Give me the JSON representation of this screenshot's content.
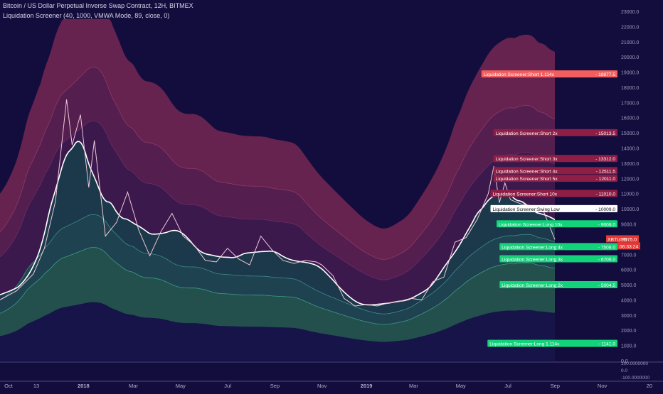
{
  "header": {
    "title": "Bitcoin / US Dollar Perpetual Inverse Swap Contract, 12H, BITMEX",
    "indicator": "Liquidation Screener (40, 1000, VMWA Mode, 89, close, 0)"
  },
  "colors": {
    "background": "#130d3d",
    "short_zone": "#6b2550",
    "short_inner": "#3e1a4e",
    "long_zone": "#24544e",
    "long_inner": "#1b3c4c",
    "long_outer": "#17154a",
    "price_line": "#f0c8d8",
    "swing_line": "#ffffff"
  },
  "chart_data": {
    "type": "line",
    "ylim": [
      0,
      23500
    ],
    "y_ticks": [
      "23000.0",
      "22000.0",
      "21000.0",
      "20000.0",
      "19000.0",
      "18000.0",
      "17000.0",
      "16000.0",
      "15000.0",
      "14000.0",
      "13000.0",
      "12000.0",
      "11000.0",
      "10000.0",
      "9000.0",
      "8000.0",
      "7000.0",
      "6000.0",
      "5000.0",
      "4000.0",
      "3000.0",
      "2000.0",
      "1000.0",
      "0.0"
    ],
    "x_ticks": [
      "Oct",
      "13",
      "2018",
      "Mar",
      "May",
      "Jul",
      "Sep",
      "Nov",
      "2019",
      "Mar",
      "May",
      "Jul",
      "Sep",
      "Nov",
      "20"
    ],
    "x_tick_pos": [
      0.0,
      0.05,
      0.135,
      0.225,
      0.31,
      0.395,
      0.48,
      0.565,
      0.645,
      0.73,
      0.815,
      0.9,
      0.985,
      1.07,
      1.155
    ],
    "subpanel_ticks": [
      "100.0000000",
      "0.0",
      "-100.0000000"
    ],
    "price": {
      "name": "XBTUSD",
      "last_value": "7975.0",
      "countdown": "06:33:24",
      "t": [
        0,
        0.03,
        0.06,
        0.08,
        0.1,
        0.12,
        0.13,
        0.145,
        0.16,
        0.17,
        0.19,
        0.21,
        0.23,
        0.25,
        0.27,
        0.29,
        0.31,
        0.33,
        0.35,
        0.37,
        0.39,
        0.41,
        0.43,
        0.45,
        0.47,
        0.49,
        0.51,
        0.53,
        0.55,
        0.57,
        0.58,
        0.6,
        0.62,
        0.64,
        0.66,
        0.68,
        0.7,
        0.72,
        0.74,
        0.76,
        0.78,
        0.8,
        0.82,
        0.84,
        0.86,
        0.88,
        0.89,
        0.9,
        0.91,
        0.92,
        0.94,
        0.96,
        0.98,
        1.0
      ],
      "v": [
        4000,
        4600,
        5700,
        7400,
        10500,
        17200,
        14200,
        16200,
        11400,
        14500,
        8200,
        9100,
        11100,
        8600,
        6900,
        8500,
        9700,
        8200,
        7600,
        6600,
        6500,
        7400,
        6700,
        6300,
        8200,
        7300,
        6600,
        6400,
        6600,
        6500,
        6300,
        5600,
        4100,
        3600,
        3700,
        3600,
        3800,
        3900,
        4100,
        4000,
        5200,
        5500,
        7800,
        8100,
        9300,
        11000,
        12800,
        10400,
        11700,
        10600,
        10300,
        10200,
        9800,
        7975
      ]
    },
    "levels": [
      {
        "name": "Liquidation Screener:Short 1.114x",
        "value": 18877.5,
        "color": "#f25e5e"
      },
      {
        "name": "Liquidation Screener:Short 2x",
        "value": 15013.5,
        "color": "#8f1e46"
      },
      {
        "name": "Liquidation Screener:Short 3x",
        "value": 13312.0,
        "color": "#8f1e46"
      },
      {
        "name": "Liquidation Screener:Short 4x",
        "value": 12511.5,
        "color": "#8f1e46"
      },
      {
        "name": "Liquidation Screener:Short 5x",
        "value": 12011.0,
        "color": "#8f1e46"
      },
      {
        "name": "Liquidation Screener:Short 10x",
        "value": 11010.0,
        "color": "#8f1e46"
      },
      {
        "name": "Liquidation Screener:Swing Low",
        "value": 10009.0,
        "color": "#ffffff"
      },
      {
        "name": "Liquidation Screener:Long 10x",
        "value": 9008.0,
        "color": "#12d37a"
      },
      {
        "name": "Liquidation Screener:Long 4x",
        "value": 7508.0,
        "color": "#12d37a"
      },
      {
        "name": "Liquidation Screener:Long 3x",
        "value": 6706.0,
        "color": "#12d37a"
      },
      {
        "name": "Liquidation Screener:Long 2x",
        "value": 5004.5,
        "color": "#12d37a"
      },
      {
        "name": "Liquidation Screener:Long 1.114x",
        "value": 1141.0,
        "color": "#12d37a"
      }
    ]
  }
}
